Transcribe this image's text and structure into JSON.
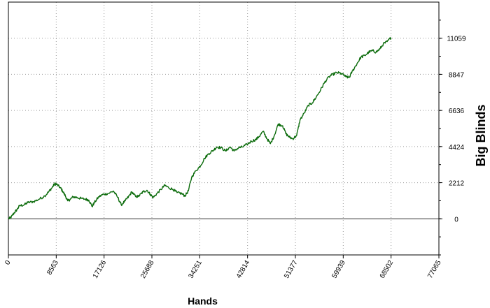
{
  "chart_data": {
    "type": "line",
    "xlabel": "Hands",
    "ylabel": "Big Blinds",
    "xlim": [
      0,
      77065
    ],
    "ylim": [
      -2212,
      13271
    ],
    "x_ticks": [
      "0",
      "8563",
      "17126",
      "25688",
      "34251",
      "42814",
      "51377",
      "59939",
      "68502",
      "77065"
    ],
    "y_ticks": [
      "0",
      "2212",
      "4424",
      "6636",
      "8847",
      "11059"
    ],
    "grid": true,
    "y_axis_position": "right",
    "zero_line": true,
    "line_color": "#0b6b0b",
    "series": [
      {
        "points": [
          [
            0,
            0
          ],
          [
            500,
            100
          ],
          [
            1000,
            350
          ],
          [
            1500,
            550
          ],
          [
            2000,
            800
          ],
          [
            2800,
            850
          ],
          [
            3500,
            1000
          ],
          [
            4500,
            1050
          ],
          [
            5500,
            1200
          ],
          [
            6500,
            1400
          ],
          [
            7200,
            1650
          ],
          [
            7800,
            1900
          ],
          [
            8300,
            2150
          ],
          [
            8700,
            2100
          ],
          [
            9300,
            1900
          ],
          [
            9700,
            1700
          ],
          [
            10200,
            1400
          ],
          [
            10600,
            1100
          ],
          [
            11100,
            1200
          ],
          [
            11600,
            1350
          ],
          [
            12300,
            1300
          ],
          [
            13000,
            1250
          ],
          [
            13800,
            1200
          ],
          [
            14400,
            1150
          ],
          [
            15000,
            750
          ],
          [
            15400,
            1000
          ],
          [
            16200,
            1350
          ],
          [
            17000,
            1500
          ],
          [
            17900,
            1550
          ],
          [
            18800,
            1700
          ],
          [
            19600,
            1300
          ],
          [
            20200,
            850
          ],
          [
            20900,
            1100
          ],
          [
            21500,
            1350
          ],
          [
            22100,
            1650
          ],
          [
            22800,
            1350
          ],
          [
            23400,
            1400
          ],
          [
            24100,
            1650
          ],
          [
            24800,
            1750
          ],
          [
            25400,
            1500
          ],
          [
            25900,
            1300
          ],
          [
            26600,
            1550
          ],
          [
            27300,
            1800
          ],
          [
            28000,
            2050
          ],
          [
            28700,
            1900
          ],
          [
            29500,
            1800
          ],
          [
            30200,
            1600
          ],
          [
            31000,
            1550
          ],
          [
            31600,
            1400
          ],
          [
            32200,
            1700
          ],
          [
            32800,
            2550
          ],
          [
            33600,
            2950
          ],
          [
            34400,
            3250
          ],
          [
            35100,
            3700
          ],
          [
            35900,
            4000
          ],
          [
            36700,
            4200
          ],
          [
            37300,
            4400
          ],
          [
            38100,
            4350
          ],
          [
            38900,
            4150
          ],
          [
            39700,
            4400
          ],
          [
            40400,
            4150
          ],
          [
            41200,
            4350
          ],
          [
            41900,
            4400
          ],
          [
            42700,
            4550
          ],
          [
            43500,
            4750
          ],
          [
            44300,
            4850
          ],
          [
            44900,
            5050
          ],
          [
            45600,
            5350
          ],
          [
            46300,
            4900
          ],
          [
            46900,
            4600
          ],
          [
            47600,
            5100
          ],
          [
            48300,
            5800
          ],
          [
            49100,
            5700
          ],
          [
            49700,
            5200
          ],
          [
            50300,
            5000
          ],
          [
            50900,
            4900
          ],
          [
            51600,
            5100
          ],
          [
            52200,
            6050
          ],
          [
            53000,
            6500
          ],
          [
            53700,
            6950
          ],
          [
            54400,
            7100
          ],
          [
            55100,
            7450
          ],
          [
            55900,
            7900
          ],
          [
            56600,
            8350
          ],
          [
            57400,
            8700
          ],
          [
            58100,
            8850
          ],
          [
            58800,
            8950
          ],
          [
            59600,
            8900
          ],
          [
            60400,
            8700
          ],
          [
            61000,
            8650
          ],
          [
            61600,
            9050
          ],
          [
            62400,
            9500
          ],
          [
            63100,
            9900
          ],
          [
            63800,
            10000
          ],
          [
            64500,
            10200
          ],
          [
            65200,
            10300
          ],
          [
            65800,
            10200
          ],
          [
            66500,
            10400
          ],
          [
            67100,
            10700
          ],
          [
            67800,
            10850
          ],
          [
            68500,
            11100
          ]
        ]
      }
    ]
  }
}
